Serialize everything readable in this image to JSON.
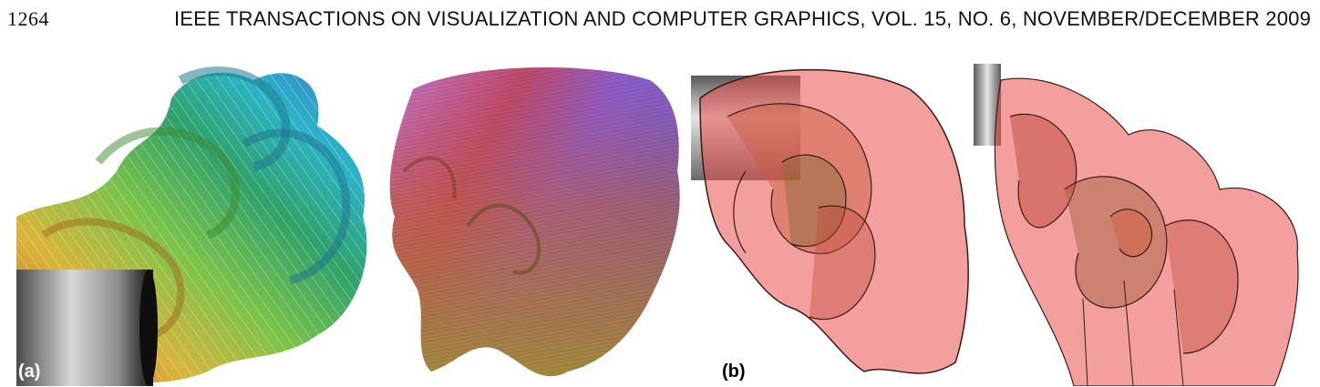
{
  "header": {
    "page_number": "1264",
    "journal_title": "IEEE TRANSACTIONS ON VISUALIZATION AND COMPUTER GRAPHICS, VOL. 15, NO. 6, NOVEMBER/DECEMBER 2009"
  },
  "figure": {
    "panel_a_label": "(a)",
    "panel_b_label": "(b)"
  },
  "colors": {
    "rainbow_surface": [
      "#c8622a",
      "#d9b43a",
      "#7cc34a",
      "#2fa26b",
      "#2bb4c8",
      "#3a73c8"
    ],
    "texture_surface": [
      "#c77ad6",
      "#8a5fd0",
      "#c04a6a",
      "#a38a3c"
    ],
    "translucent_surface": "#e8504f",
    "cylinder": "#8a8a8a"
  }
}
